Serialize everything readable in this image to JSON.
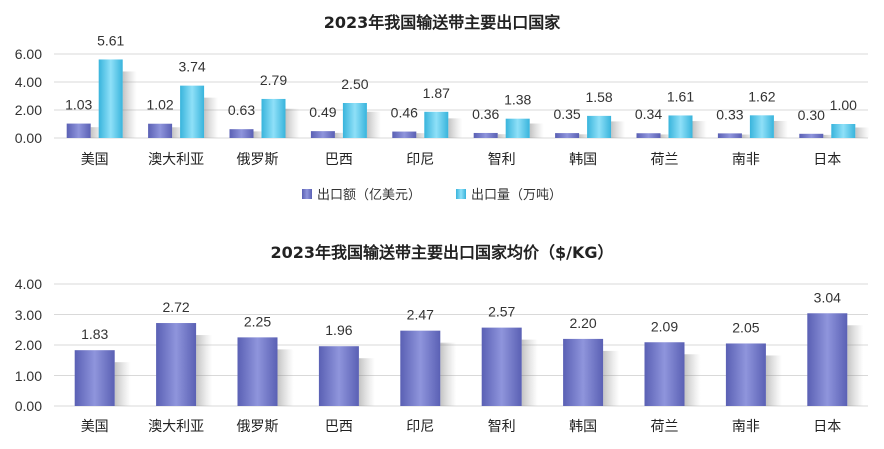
{
  "chart_data": [
    {
      "type": "bar",
      "title": "2023年我国输送带主要出口国家",
      "categories": [
        "美国",
        "澳大利亚",
        "俄罗斯",
        "巴西",
        "印尼",
        "智利",
        "韩国",
        "荷兰",
        "南非",
        "日本"
      ],
      "series": [
        {
          "name": "出口额（亿美元）",
          "values": [
            1.03,
            1.02,
            0.63,
            0.49,
            0.46,
            0.36,
            0.35,
            0.34,
            0.33,
            0.3
          ],
          "labels": [
            "1.03",
            "1.02",
            "0.63",
            "0.49",
            "0.46",
            "0.36",
            "0.35",
            "0.34",
            "0.33",
            "0.30"
          ],
          "color": "#6b72c2"
        },
        {
          "name": "出口量（万吨）",
          "values": [
            5.61,
            3.74,
            2.79,
            2.5,
            1.87,
            1.38,
            1.58,
            1.61,
            1.62,
            1.0
          ],
          "labels": [
            "5.61",
            "3.74",
            "2.79",
            "2.50",
            "1.87",
            "1.38",
            "1.58",
            "1.61",
            "1.62",
            "1.00"
          ],
          "color": "#4fc3e8"
        }
      ],
      "yticks": [
        "0.00",
        "2.00",
        "4.00",
        "6.00"
      ],
      "ylim": [
        0,
        6
      ],
      "legend": "bottom",
      "grid": true
    },
    {
      "type": "bar",
      "title": "2023年我国输送带主要出口国家均价（$/KG）",
      "categories": [
        "美国",
        "澳大利亚",
        "俄罗斯",
        "巴西",
        "印尼",
        "智利",
        "韩国",
        "荷兰",
        "南非",
        "日本"
      ],
      "series": [
        {
          "values": [
            1.83,
            2.72,
            2.25,
            1.96,
            2.47,
            2.57,
            2.2,
            2.09,
            2.05,
            3.04
          ],
          "labels": [
            "1.83",
            "2.72",
            "2.25",
            "1.96",
            "2.47",
            "2.57",
            "2.20",
            "2.09",
            "2.05",
            "3.04"
          ],
          "color": "#6b72c2"
        }
      ],
      "yticks": [
        "0.00",
        "1.00",
        "2.00",
        "3.00",
        "4.00"
      ],
      "ylim": [
        0,
        4
      ],
      "grid": true
    }
  ]
}
